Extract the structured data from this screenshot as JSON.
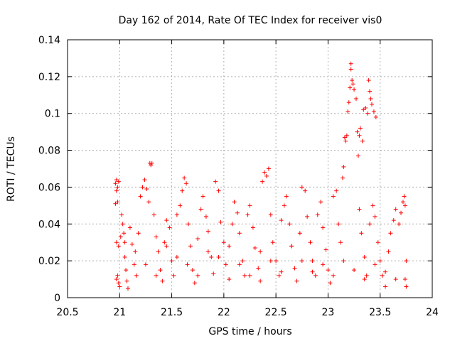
{
  "chart_data": {
    "type": "scatter",
    "title": "Day 162 of 2014, Rate Of TEC Index for receiver vis0",
    "xlabel": "GPS time / hours",
    "ylabel": "ROTI / TECUs",
    "xlim": [
      20.5,
      24
    ],
    "ylim": [
      0,
      0.14
    ],
    "xticks": [
      20.5,
      21,
      21.5,
      22,
      22.5,
      23,
      23.5,
      24
    ],
    "xtick_labels": [
      "20.5",
      "21",
      "21.5",
      "22",
      "22.5",
      "23",
      "23.5",
      "24"
    ],
    "yticks": [
      0,
      0.02,
      0.04,
      0.06,
      0.08,
      0.1,
      0.12,
      0.14
    ],
    "ytick_labels": [
      "0",
      "0.02",
      "0.04",
      "0.06",
      "0.08",
      "0.1",
      "0.12",
      "0.14"
    ],
    "grid": true,
    "marker": "+",
    "color": "#ff0000",
    "series": [
      {
        "name": "ROTI",
        "points": [
          [
            20.96,
            0.062
          ],
          [
            20.97,
            0.064
          ],
          [
            20.98,
            0.06
          ],
          [
            20.99,
            0.063
          ],
          [
            20.97,
            0.058
          ],
          [
            20.96,
            0.051
          ],
          [
            20.98,
            0.052
          ],
          [
            20.97,
            0.01
          ],
          [
            20.98,
            0.012
          ],
          [
            20.99,
            0.008
          ],
          [
            21.0,
            0.006
          ],
          [
            20.97,
            0.03
          ],
          [
            20.99,
            0.028
          ],
          [
            21.01,
            0.033
          ],
          [
            21.02,
            0.045
          ],
          [
            21.03,
            0.04
          ],
          [
            21.04,
            0.035
          ],
          [
            21.05,
            0.022
          ],
          [
            21.06,
            0.015
          ],
          [
            21.07,
            0.009
          ],
          [
            21.08,
            0.005
          ],
          [
            21.1,
            0.038
          ],
          [
            21.12,
            0.029
          ],
          [
            21.14,
            0.018
          ],
          [
            21.16,
            0.012
          ],
          [
            21.18,
            0.035
          ],
          [
            21.2,
            0.055
          ],
          [
            21.22,
            0.06
          ],
          [
            21.24,
            0.064
          ],
          [
            21.26,
            0.059
          ],
          [
            21.28,
            0.052
          ],
          [
            21.29,
            0.073
          ],
          [
            21.3,
            0.072
          ],
          [
            21.31,
            0.073
          ],
          [
            21.33,
            0.045
          ],
          [
            21.35,
            0.033
          ],
          [
            21.37,
            0.025
          ],
          [
            21.39,
            0.015
          ],
          [
            21.41,
            0.009
          ],
          [
            21.43,
            0.03
          ],
          [
            21.45,
            0.042
          ],
          [
            21.48,
            0.038
          ],
          [
            21.5,
            0.02
          ],
          [
            21.52,
            0.012
          ],
          [
            21.55,
            0.045
          ],
          [
            21.58,
            0.05
          ],
          [
            21.6,
            0.058
          ],
          [
            21.62,
            0.065
          ],
          [
            21.64,
            0.062
          ],
          [
            21.66,
            0.04
          ],
          [
            21.68,
            0.028
          ],
          [
            21.7,
            0.015
          ],
          [
            21.72,
            0.008
          ],
          [
            21.75,
            0.032
          ],
          [
            21.78,
            0.048
          ],
          [
            21.8,
            0.055
          ],
          [
            21.83,
            0.044
          ],
          [
            21.85,
            0.036
          ],
          [
            21.88,
            0.022
          ],
          [
            21.9,
            0.013
          ],
          [
            21.92,
            0.063
          ],
          [
            21.95,
            0.058
          ],
          [
            21.97,
            0.041
          ],
          [
            22.0,
            0.03
          ],
          [
            22.02,
            0.018
          ],
          [
            22.05,
            0.01
          ],
          [
            22.08,
            0.04
          ],
          [
            22.1,
            0.052
          ],
          [
            22.13,
            0.046
          ],
          [
            22.15,
            0.035
          ],
          [
            22.18,
            0.02
          ],
          [
            22.2,
            0.012
          ],
          [
            22.23,
            0.045
          ],
          [
            22.25,
            0.05
          ],
          [
            22.28,
            0.038
          ],
          [
            22.3,
            0.027
          ],
          [
            22.33,
            0.016
          ],
          [
            22.35,
            0.009
          ],
          [
            22.37,
            0.063
          ],
          [
            22.39,
            0.068
          ],
          [
            22.41,
            0.066
          ],
          [
            22.43,
            0.07
          ],
          [
            22.45,
            0.045
          ],
          [
            22.47,
            0.03
          ],
          [
            22.5,
            0.02
          ],
          [
            22.53,
            0.012
          ],
          [
            22.55,
            0.042
          ],
          [
            22.58,
            0.05
          ],
          [
            22.6,
            0.055
          ],
          [
            22.63,
            0.04
          ],
          [
            22.65,
            0.028
          ],
          [
            22.68,
            0.016
          ],
          [
            22.7,
            0.009
          ],
          [
            22.73,
            0.035
          ],
          [
            22.75,
            0.06
          ],
          [
            22.78,
            0.058
          ],
          [
            22.8,
            0.044
          ],
          [
            22.83,
            0.03
          ],
          [
            22.85,
            0.02
          ],
          [
            22.88,
            0.012
          ],
          [
            22.9,
            0.045
          ],
          [
            22.93,
            0.052
          ],
          [
            22.95,
            0.038
          ],
          [
            22.98,
            0.026
          ],
          [
            23.0,
            0.015
          ],
          [
            23.02,
            0.008
          ],
          [
            23.05,
            0.055
          ],
          [
            23.08,
            0.058
          ],
          [
            23.1,
            0.04
          ],
          [
            23.12,
            0.03
          ],
          [
            23.14,
            0.065
          ],
          [
            23.15,
            0.071
          ],
          [
            23.16,
            0.087
          ],
          [
            23.17,
            0.085
          ],
          [
            23.18,
            0.088
          ],
          [
            23.19,
            0.101
          ],
          [
            23.2,
            0.106
          ],
          [
            23.21,
            0.114
          ],
          [
            23.22,
            0.127
          ],
          [
            23.22,
            0.124
          ],
          [
            23.23,
            0.118
          ],
          [
            23.24,
            0.116
          ],
          [
            23.25,
            0.113
          ],
          [
            23.27,
            0.108
          ],
          [
            23.28,
            0.09
          ],
          [
            23.29,
            0.077
          ],
          [
            23.3,
            0.088
          ],
          [
            23.31,
            0.092
          ],
          [
            23.33,
            0.085
          ],
          [
            23.34,
            0.102
          ],
          [
            23.36,
            0.103
          ],
          [
            23.38,
            0.1
          ],
          [
            23.39,
            0.118
          ],
          [
            23.4,
            0.112
          ],
          [
            23.41,
            0.108
          ],
          [
            23.42,
            0.105
          ],
          [
            23.44,
            0.101
          ],
          [
            23.46,
            0.098
          ],
          [
            23.3,
            0.048
          ],
          [
            23.32,
            0.035
          ],
          [
            23.35,
            0.022
          ],
          [
            23.37,
            0.012
          ],
          [
            23.4,
            0.04
          ],
          [
            23.43,
            0.05
          ],
          [
            23.45,
            0.044
          ],
          [
            23.48,
            0.03
          ],
          [
            23.5,
            0.02
          ],
          [
            23.52,
            0.012
          ],
          [
            23.55,
            0.006
          ],
          [
            23.58,
            0.025
          ],
          [
            23.6,
            0.035
          ],
          [
            23.63,
            0.042
          ],
          [
            23.65,
            0.048
          ],
          [
            23.68,
            0.04
          ],
          [
            23.7,
            0.046
          ],
          [
            23.72,
            0.052
          ],
          [
            23.73,
            0.055
          ],
          [
            23.74,
            0.05
          ],
          [
            23.75,
            0.02
          ],
          [
            23.74,
            0.01
          ],
          [
            23.75,
            0.006
          ],
          [
            21.05,
            0.03
          ],
          [
            21.15,
            0.025
          ],
          [
            21.25,
            0.018
          ],
          [
            21.35,
            0.012
          ],
          [
            21.45,
            0.028
          ],
          [
            21.55,
            0.022
          ],
          [
            21.65,
            0.018
          ],
          [
            21.75,
            0.012
          ],
          [
            21.85,
            0.025
          ],
          [
            21.95,
            0.022
          ],
          [
            22.05,
            0.028
          ],
          [
            22.15,
            0.018
          ],
          [
            22.25,
            0.012
          ],
          [
            22.35,
            0.025
          ],
          [
            22.45,
            0.02
          ],
          [
            22.55,
            0.014
          ],
          [
            22.65,
            0.028
          ],
          [
            22.75,
            0.02
          ],
          [
            22.85,
            0.014
          ],
          [
            22.95,
            0.018
          ],
          [
            23.05,
            0.012
          ],
          [
            23.15,
            0.02
          ],
          [
            23.25,
            0.015
          ],
          [
            23.35,
            0.01
          ],
          [
            23.45,
            0.018
          ],
          [
            23.55,
            0.014
          ],
          [
            23.65,
            0.01
          ]
        ]
      }
    ]
  }
}
